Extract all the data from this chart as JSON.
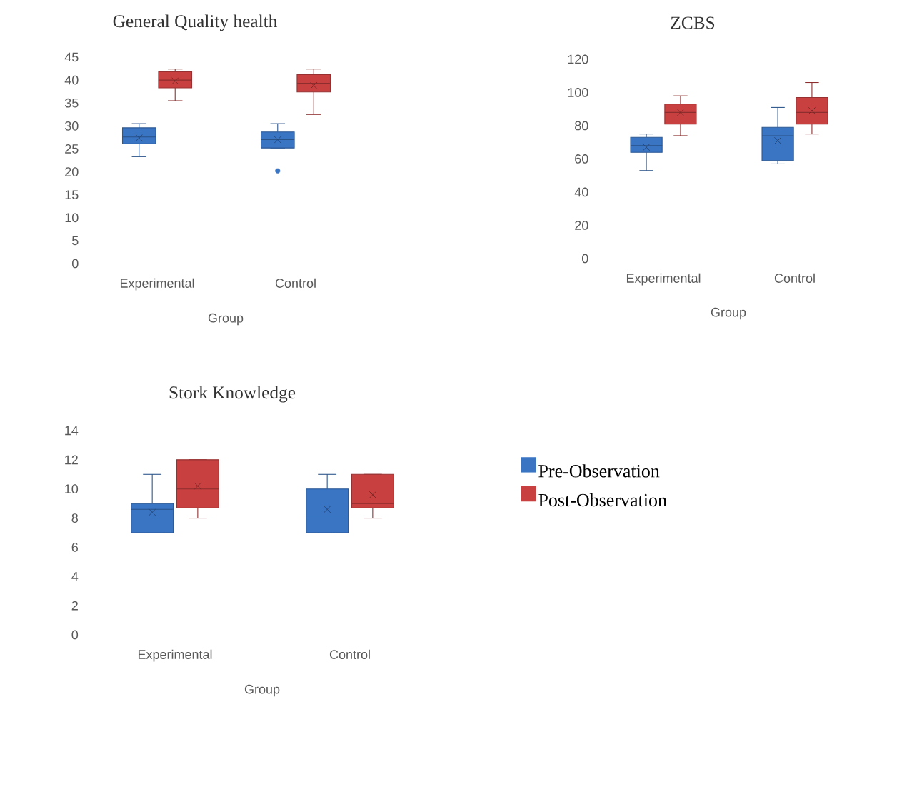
{
  "chart_data": [
    {
      "type": "box",
      "title": "General Quality health",
      "xlabel": "Group",
      "categories": [
        "Experimental",
        "Control"
      ],
      "ylim": [
        0,
        45
      ],
      "yticks": [
        0,
        5,
        10,
        15,
        20,
        25,
        30,
        35,
        40,
        45
      ],
      "series": [
        {
          "color": "#3a75c4",
          "boxes": [
            {
              "low": 23.3,
              "q1": 26.1,
              "median": 27.6,
              "q3": 29.6,
              "high": 30.5,
              "mean": 27.4
            },
            {
              "low": 25.2,
              "q1": 25.2,
              "median": 27,
              "q3": 28.7,
              "high": 30.5,
              "mean": 27,
              "outliers": [
                20.2
              ]
            }
          ]
        },
        {
          "color": "#c94040",
          "boxes": [
            {
              "low": 35.5,
              "q1": 38.3,
              "median": 40,
              "q3": 41.8,
              "high": 42.4,
              "mean": 39.8
            },
            {
              "low": 32.5,
              "q1": 37.4,
              "median": 39.3,
              "q3": 41.2,
              "high": 42.4,
              "mean": 38.8
            }
          ]
        }
      ]
    },
    {
      "type": "box",
      "title": "ZCBS",
      "xlabel": "Group",
      "categories": [
        "Experimental",
        "Control"
      ],
      "ylim": [
        0,
        120
      ],
      "yticks": [
        0,
        20,
        40,
        60,
        80,
        100,
        120
      ],
      "series": [
        {
          "color": "#3a75c4",
          "boxes": [
            {
              "low": 53,
              "q1": 64,
              "median": 68,
              "q3": 73,
              "high": 75,
              "mean": 67
            },
            {
              "low": 57,
              "q1": 59,
              "median": 74,
              "q3": 79,
              "high": 91,
              "mean": 71
            }
          ]
        },
        {
          "color": "#c94040",
          "boxes": [
            {
              "low": 74,
              "q1": 81,
              "median": 88,
              "q3": 93,
              "high": 98,
              "mean": 88
            },
            {
              "low": 75,
              "q1": 81,
              "median": 88,
              "q3": 97,
              "high": 106,
              "mean": 89
            }
          ]
        }
      ]
    },
    {
      "type": "box",
      "title": "Stork Knowledge",
      "xlabel": "Group",
      "categories": [
        "Experimental",
        "Control"
      ],
      "ylim": [
        0,
        14
      ],
      "yticks": [
        0,
        2,
        4,
        6,
        8,
        10,
        12,
        14
      ],
      "legend": "right",
      "series": [
        {
          "name": "Pre-Observation",
          "color": "#3a75c4",
          "boxes": [
            {
              "low": 7,
              "q1": 7,
              "median": 8.6,
              "q3": 9,
              "high": 11,
              "mean": 8.4
            },
            {
              "low": 7,
              "q1": 7,
              "median": 8,
              "q3": 10,
              "high": 11,
              "mean": 8.6
            }
          ]
        },
        {
          "name": "Post-Observation",
          "color": "#c94040",
          "boxes": [
            {
              "low": 8,
              "q1": 8.7,
              "median": 10,
              "q3": 12,
              "high": 12,
              "mean": 10.2
            },
            {
              "low": 8,
              "q1": 8.7,
              "median": 9,
              "q3": 11,
              "high": 11,
              "mean": 9.6
            }
          ]
        }
      ]
    }
  ]
}
